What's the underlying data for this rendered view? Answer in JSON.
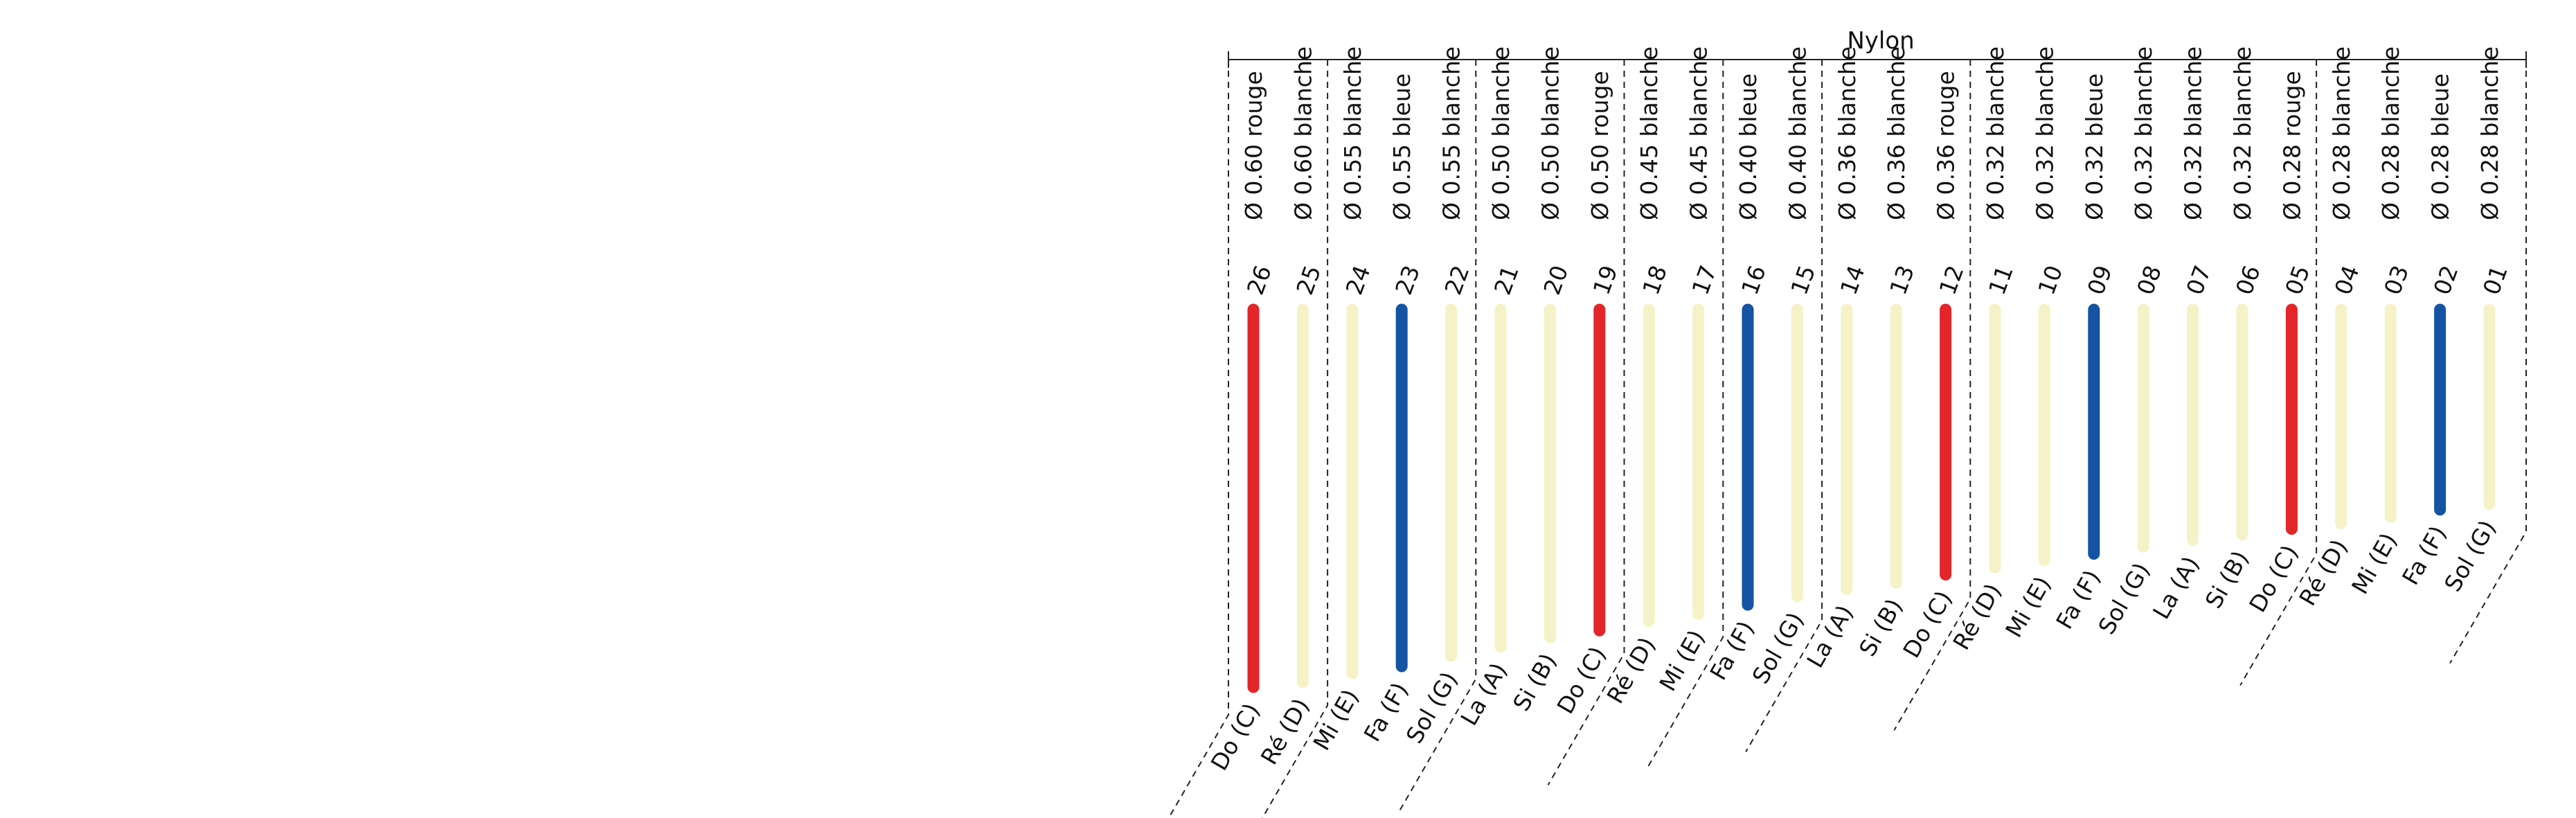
{
  "title": "Nylon",
  "colors": {
    "rouge": "#e3262a",
    "bleue": "#1553a3",
    "blanche": "#f6f2c8",
    "line": "#222222"
  },
  "strings": [
    {
      "number": "26",
      "spec": "Ø 0.60 rouge",
      "note": "Do (C)",
      "color": "rouge",
      "length": 1.0
    },
    {
      "number": "25",
      "spec": "Ø 0.60 blanche",
      "note": "Ré (D)",
      "color": "blanche",
      "length": 0.987
    },
    {
      "number": "24",
      "spec": "Ø 0.55 blanche",
      "note": "Mi (E)",
      "color": "blanche",
      "length": 0.963
    },
    {
      "number": "23",
      "spec": "Ø 0.55 bleue",
      "note": "Fa (F)",
      "color": "bleue",
      "length": 0.945
    },
    {
      "number": "22",
      "spec": "Ø 0.55 blanche",
      "note": "Sol (G)",
      "color": "blanche",
      "length": 0.917
    },
    {
      "number": "21",
      "spec": "Ø 0.50 blanche",
      "note": "La (A)",
      "color": "blanche",
      "length": 0.893
    },
    {
      "number": "20",
      "spec": "Ø 0.50 blanche",
      "note": "Si (B)",
      "color": "blanche",
      "length": 0.868
    },
    {
      "number": "19",
      "spec": "Ø 0.50 rouge",
      "note": "Do (C)",
      "color": "rouge",
      "length": 0.85
    },
    {
      "number": "18",
      "spec": "Ø 0.45 blanche",
      "note": "Ré (D)",
      "color": "blanche",
      "length": 0.825
    },
    {
      "number": "17",
      "spec": "Ø 0.45 blanche",
      "note": "Mi (E)",
      "color": "blanche",
      "length": 0.806
    },
    {
      "number": "16",
      "spec": "Ø 0.40 bleue",
      "note": "Fa (F)",
      "color": "bleue",
      "length": 0.782
    },
    {
      "number": "15",
      "spec": "Ø 0.40 blanche",
      "note": "Sol (G)",
      "color": "blanche",
      "length": 0.759
    },
    {
      "number": "14",
      "spec": "Ø 0.36 blanche",
      "note": "La (A)",
      "color": "blanche",
      "length": 0.74
    },
    {
      "number": "13",
      "spec": "Ø 0.36 blanche",
      "note": "Si (B)",
      "color": "blanche",
      "length": 0.723
    },
    {
      "number": "12",
      "spec": "Ø 0.36 rouge",
      "note": "Do (C)",
      "color": "rouge",
      "length": 0.702
    },
    {
      "number": "11",
      "spec": "Ø 0.32 blanche",
      "note": "Ré (D)",
      "color": "blanche",
      "length": 0.683
    },
    {
      "number": "10",
      "spec": "Ø 0.32 blanche",
      "note": "Mi (E)",
      "color": "blanche",
      "length": 0.664
    },
    {
      "number": "09",
      "spec": "Ø 0.32 bleue",
      "note": "Fa (F)",
      "color": "bleue",
      "length": 0.647
    },
    {
      "number": "08",
      "spec": "Ø 0.32 blanche",
      "note": "Sol (G)",
      "color": "blanche",
      "length": 0.628
    },
    {
      "number": "07",
      "spec": "Ø 0.32 blanche",
      "note": "La (A)",
      "color": "blanche",
      "length": 0.611
    },
    {
      "number": "06",
      "spec": "Ø 0.32 blanche",
      "note": "Si (B)",
      "color": "blanche",
      "length": 0.596
    },
    {
      "number": "05",
      "spec": "Ø 0.28 rouge",
      "note": "Do (C)",
      "color": "rouge",
      "length": 0.581
    },
    {
      "number": "04",
      "spec": "Ø 0.28 blanche",
      "note": "Ré (D)",
      "color": "blanche",
      "length": 0.566
    },
    {
      "number": "03",
      "spec": "Ø 0.28 blanche",
      "note": "Mi (E)",
      "color": "blanche",
      "length": 0.549
    },
    {
      "number": "02",
      "spec": "Ø 0.28 bleue",
      "note": "Fa (F)",
      "color": "bleue",
      "length": 0.53
    },
    {
      "number": "01",
      "spec": "Ø 0.28 blanche",
      "note": "Sol (G)",
      "color": "blanche",
      "length": 0.515
    }
  ],
  "group_breaks_after_number": [
    "25",
    "22",
    "19",
    "17",
    "15",
    "12",
    "05"
  ]
}
